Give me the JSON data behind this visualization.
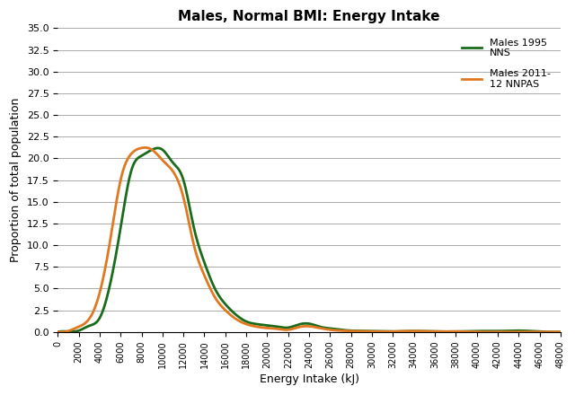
{
  "title": "Males, Normal BMI: Energy Intake",
  "xlabel": "Energy Intake (kJ)",
  "ylabel": "Proportion of total population",
  "xlim": [
    0,
    48000
  ],
  "ylim": [
    0,
    35.0
  ],
  "yticks": [
    0.0,
    2.5,
    5.0,
    7.5,
    10.0,
    12.5,
    15.0,
    17.5,
    20.0,
    22.5,
    25.0,
    27.5,
    30.0,
    32.5,
    35.0
  ],
  "xticks": [
    0,
    2000,
    4000,
    6000,
    8000,
    10000,
    12000,
    14000,
    16000,
    18000,
    20000,
    22000,
    24000,
    26000,
    28000,
    30000,
    32000,
    34000,
    36000,
    38000,
    40000,
    42000,
    44000,
    46000,
    48000
  ],
  "green_color": "#1a6b1a",
  "orange_color": "#e07820",
  "legend_labels": [
    "Males 1995\nNNS",
    "Males 2011-\n12 NNPAS"
  ],
  "background_color": "#ffffff",
  "green_data": {
    "x": [
      0,
      1000,
      2000,
      3000,
      4000,
      5000,
      6000,
      7000,
      8000,
      9000,
      10000,
      11000,
      12000,
      13000,
      14000,
      15000,
      16000,
      17000,
      18000,
      19000,
      20000,
      21000,
      22000,
      23000,
      24000,
      25000,
      26000,
      27000,
      28000,
      30000,
      32000,
      34000,
      36000,
      38000,
      40000,
      42000,
      44000,
      46000,
      48000
    ],
    "y": [
      0.0,
      0.05,
      0.15,
      0.7,
      1.6,
      5.5,
      12.0,
      18.5,
      20.3,
      21.0,
      21.0,
      19.5,
      17.5,
      12.0,
      8.0,
      5.0,
      3.2,
      2.0,
      1.2,
      0.9,
      0.75,
      0.6,
      0.5,
      0.85,
      0.95,
      0.6,
      0.4,
      0.25,
      0.15,
      0.1,
      0.05,
      0.1,
      0.05,
      0.05,
      0.1,
      0.1,
      0.15,
      0.05,
      0.0
    ]
  },
  "orange_data": {
    "x": [
      0,
      1000,
      2000,
      3000,
      4000,
      5000,
      6000,
      7000,
      8000,
      9000,
      10000,
      11000,
      12000,
      13000,
      14000,
      15000,
      16000,
      17000,
      18000,
      19000,
      20000,
      21000,
      22000,
      23000,
      24000,
      25000,
      26000,
      27000,
      28000,
      30000,
      32000,
      34000,
      36000,
      38000,
      40000,
      42000,
      44000,
      46000,
      48000
    ],
    "y": [
      0.0,
      0.1,
      0.6,
      1.5,
      4.5,
      10.5,
      17.5,
      20.5,
      21.2,
      21.0,
      19.8,
      18.5,
      15.5,
      10.0,
      6.5,
      4.0,
      2.5,
      1.5,
      0.9,
      0.6,
      0.45,
      0.35,
      0.25,
      0.55,
      0.65,
      0.45,
      0.25,
      0.15,
      0.1,
      0.05,
      0.05,
      0.1,
      0.05,
      0.05,
      0.0,
      0.0,
      0.0,
      0.0,
      0.0
    ]
  }
}
